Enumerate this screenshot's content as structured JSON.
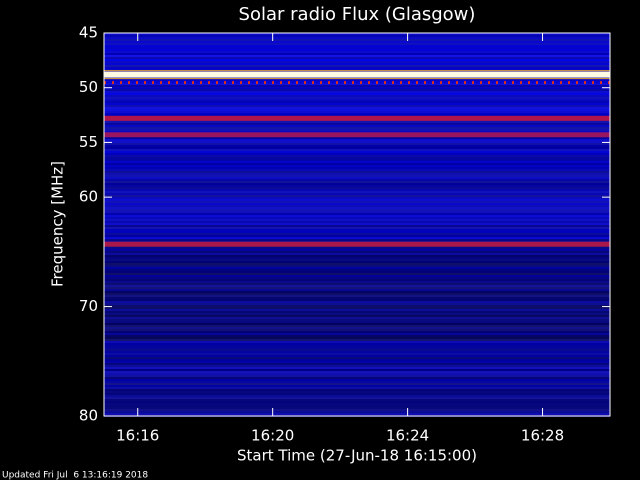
{
  "chart_data": {
    "type": "spectrogram",
    "title": "Solar radio Flux (Glasgow)",
    "x_label": "Start Time (27-Jun-18 16:15:00)",
    "y_label": "Frequency [MHz]",
    "xlim": [
      "16:15",
      "16:30"
    ],
    "xticks": [
      "16:16",
      "16:20",
      "16:24",
      "16:28"
    ],
    "ylim": [
      45,
      80
    ],
    "yticks": [
      45,
      50,
      55,
      60,
      70,
      80
    ],
    "bands": [
      {
        "frequency": 48.8,
        "color": "#fffbe0"
      },
      {
        "frequency": 52.8,
        "color": "#b0154a"
      },
      {
        "frequency": 54.3,
        "color": "#9a1560"
      },
      {
        "frequency": 64.3,
        "color": "#a8184a"
      }
    ],
    "footer": "Updated Fri Jul  6 13:16:19 2018"
  }
}
